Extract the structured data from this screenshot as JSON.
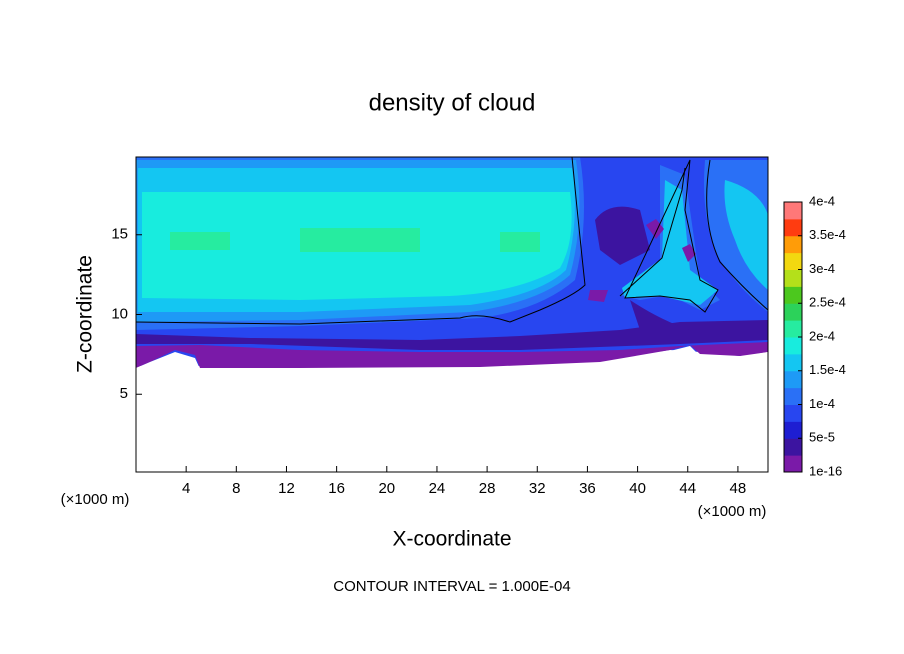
{
  "chart_data": {
    "type": "contourf",
    "title": "density of cloud",
    "x_label": "X-coordinate",
    "y_label": "Z-coordinate",
    "x_unit_label": "(×1000 m)",
    "y_unit_label": "(×1000 m)",
    "footer": "CONTOUR INTERVAL = 1.000E-04",
    "xlim": [
      0,
      50.4
    ],
    "xticks": [
      4,
      8,
      12,
      16,
      20,
      24,
      28,
      32,
      36,
      40,
      44,
      48
    ],
    "ylim": [
      0.125,
      19.875
    ],
    "yticks": [
      5,
      10,
      15
    ],
    "colorbar": {
      "ticks": [
        {
          "value": 1e-16,
          "label": "1e-16"
        },
        {
          "value": 5e-05,
          "label": "5e-5"
        },
        {
          "value": 0.0001,
          "label": "1e-4"
        },
        {
          "value": 0.00015,
          "label": "1.5e-4"
        },
        {
          "value": 0.0002,
          "label": "2e-4"
        },
        {
          "value": 0.00025,
          "label": "2.5e-4"
        },
        {
          "value": 0.0003,
          "label": "3e-4"
        },
        {
          "value": 0.00035,
          "label": "3.5e-4"
        },
        {
          "value": 0.0004,
          "label": "4e-4"
        }
      ],
      "colors": [
        "#7a1aa8",
        "#3c14a0",
        "#1e1ed2",
        "#2846f0",
        "#2a70f6",
        "#1e9af6",
        "#14c6f2",
        "#18ecde",
        "#26eca0",
        "#2cd25a",
        "#4cc81e",
        "#b4e01a",
        "#f2d810",
        "#ff9c08",
        "#ff3c10",
        "#ff7878"
      ]
    }
  }
}
